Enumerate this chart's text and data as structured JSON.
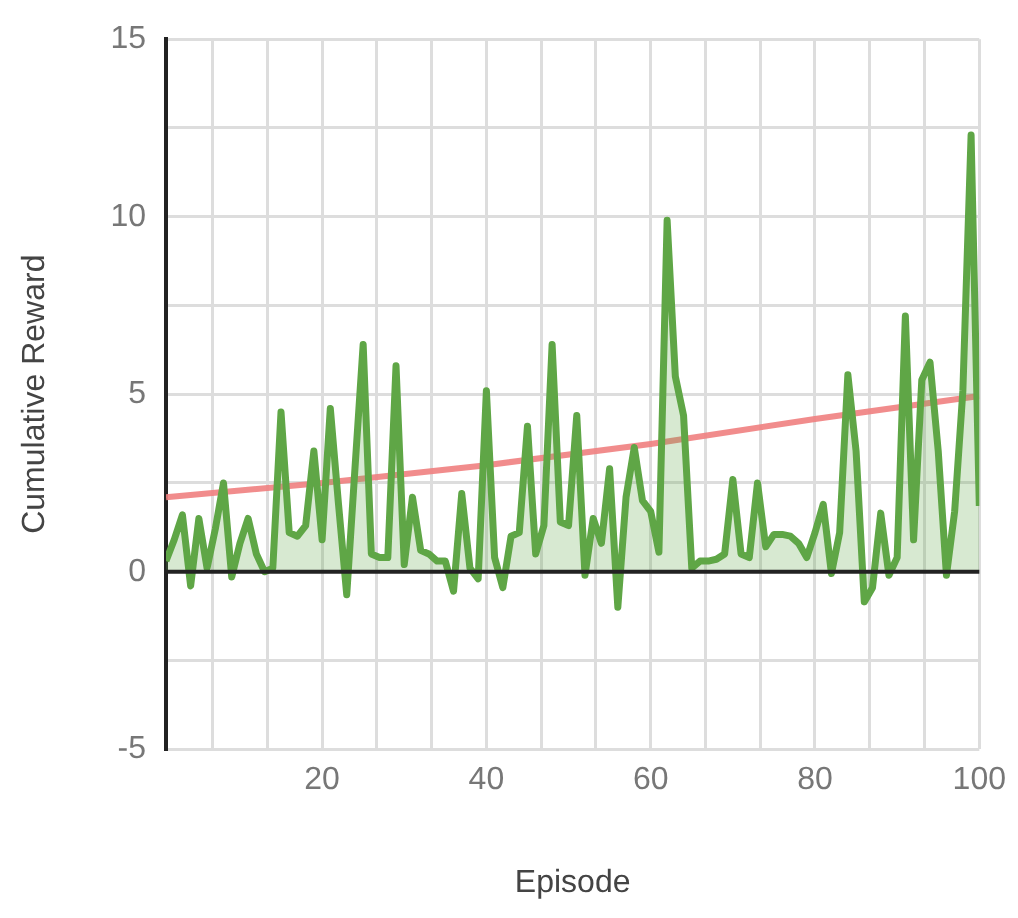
{
  "chart_data": {
    "type": "area",
    "xlabel": "Episode",
    "ylabel": "Cumulative Reward",
    "x": [
      1,
      2,
      3,
      4,
      5,
      6,
      7,
      8,
      9,
      10,
      11,
      12,
      13,
      14,
      15,
      16,
      17,
      18,
      19,
      20,
      21,
      22,
      23,
      24,
      25,
      26,
      27,
      28,
      29,
      30,
      31,
      32,
      33,
      34,
      35,
      36,
      37,
      38,
      39,
      40,
      41,
      42,
      43,
      44,
      45,
      46,
      47,
      48,
      49,
      50,
      51,
      52,
      53,
      54,
      55,
      56,
      57,
      58,
      59,
      60,
      61,
      62,
      63,
      64,
      65,
      66,
      67,
      68,
      69,
      70,
      71,
      72,
      73,
      74,
      75,
      76,
      77,
      78,
      79,
      80,
      81,
      82,
      83,
      84,
      85,
      86,
      87,
      88,
      89,
      90,
      91,
      92,
      93,
      94,
      95,
      96,
      97,
      98,
      99,
      100
    ],
    "series": [
      {
        "type": "area",
        "color": "#5fa646",
        "values": [
          0.3,
          0.9,
          1.6,
          -0.4,
          1.5,
          0.1,
          1.2,
          2.5,
          -0.15,
          0.8,
          1.5,
          0.5,
          0.0,
          0.1,
          4.5,
          1.1,
          1.0,
          1.3,
          3.4,
          0.9,
          4.6,
          1.9,
          -0.65,
          2.9,
          6.4,
          0.5,
          0.4,
          0.4,
          5.8,
          0.2,
          2.1,
          0.6,
          0.5,
          0.3,
          0.3,
          -0.55,
          2.2,
          0.1,
          -0.2,
          5.1,
          0.4,
          -0.45,
          1.0,
          1.1,
          4.1,
          0.5,
          1.3,
          6.4,
          1.4,
          1.3,
          4.4,
          -0.1,
          1.5,
          0.8,
          2.9,
          -1.0,
          2.1,
          3.5,
          2.0,
          1.7,
          0.55,
          9.9,
          5.5,
          4.4,
          0.1,
          0.3,
          0.3,
          0.35,
          0.5,
          2.6,
          0.5,
          0.4,
          2.5,
          0.7,
          1.05,
          1.05,
          1.0,
          0.8,
          0.4,
          1.1,
          1.9,
          -0.05,
          1.1,
          5.55,
          3.4,
          -0.85,
          -0.45,
          1.65,
          -0.1,
          0.4,
          7.2,
          0.9,
          5.4,
          5.9,
          3.4,
          -0.1,
          1.7,
          5.1,
          12.3,
          1.85
        ]
      },
      {
        "type": "line",
        "color": "#f08080",
        "x": [
          1,
          20,
          40,
          60,
          80,
          100
        ],
        "values": [
          2.1,
          2.5,
          3.0,
          3.6,
          4.3,
          4.95
        ]
      }
    ],
    "xlim": [
      1,
      100
    ],
    "xticks": [
      {
        "value": 6.67,
        "label": null
      },
      {
        "value": 13.33,
        "label": null
      },
      20,
      {
        "value": 26.67,
        "label": null
      },
      {
        "value": 33.33,
        "label": null
      },
      40,
      {
        "value": 46.67,
        "label": null
      },
      {
        "value": 53.33,
        "label": null
      },
      60,
      {
        "value": 66.67,
        "label": null
      },
      {
        "value": 73.33,
        "label": null
      },
      80,
      {
        "value": 86.67,
        "label": null
      },
      {
        "value": 93.33,
        "label": null
      },
      100
    ],
    "ylim": [
      -5,
      15
    ],
    "yticks": [
      -5,
      {
        "value": -2.5,
        "label": null
      },
      0,
      {
        "value": 2.5,
        "label": null
      },
      5,
      {
        "value": 7.5,
        "label": null
      },
      10,
      {
        "value": 12.5,
        "label": null
      },
      15
    ],
    "ref_lines": [
      {
        "axis": "y",
        "value": 0,
        "color": "#222222"
      }
    ],
    "grid": true,
    "legend": false,
    "marker": "none"
  }
}
